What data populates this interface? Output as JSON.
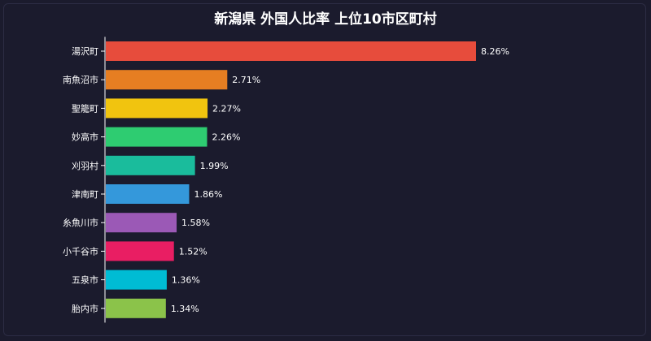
{
  "chart_data": {
    "type": "bar",
    "orientation": "horizontal",
    "title": "新潟県 外国人比率 上位10市区町村",
    "categories": [
      "湯沢町",
      "南魚沼市",
      "聖籠町",
      "妙高市",
      "刈羽村",
      "津南町",
      "糸魚川市",
      "小千谷市",
      "五泉市",
      "胎内市"
    ],
    "values": [
      8.26,
      2.71,
      2.27,
      2.26,
      1.99,
      1.86,
      1.58,
      1.52,
      1.36,
      1.34
    ],
    "value_labels": [
      "8.26%",
      "2.71%",
      "2.27%",
      "2.26%",
      "1.99%",
      "1.86%",
      "1.58%",
      "1.52%",
      "1.36%",
      "1.34%"
    ],
    "colors": [
      "#e74c3c",
      "#e67e22",
      "#f1c40f",
      "#2ecc71",
      "#1abc9c",
      "#3498db",
      "#9b59b6",
      "#e91e63",
      "#00bcd4",
      "#8bc34a"
    ],
    "xlabel": "",
    "ylabel": "",
    "xlim": [
      0,
      8.26
    ],
    "grid": false,
    "legend": "none"
  }
}
